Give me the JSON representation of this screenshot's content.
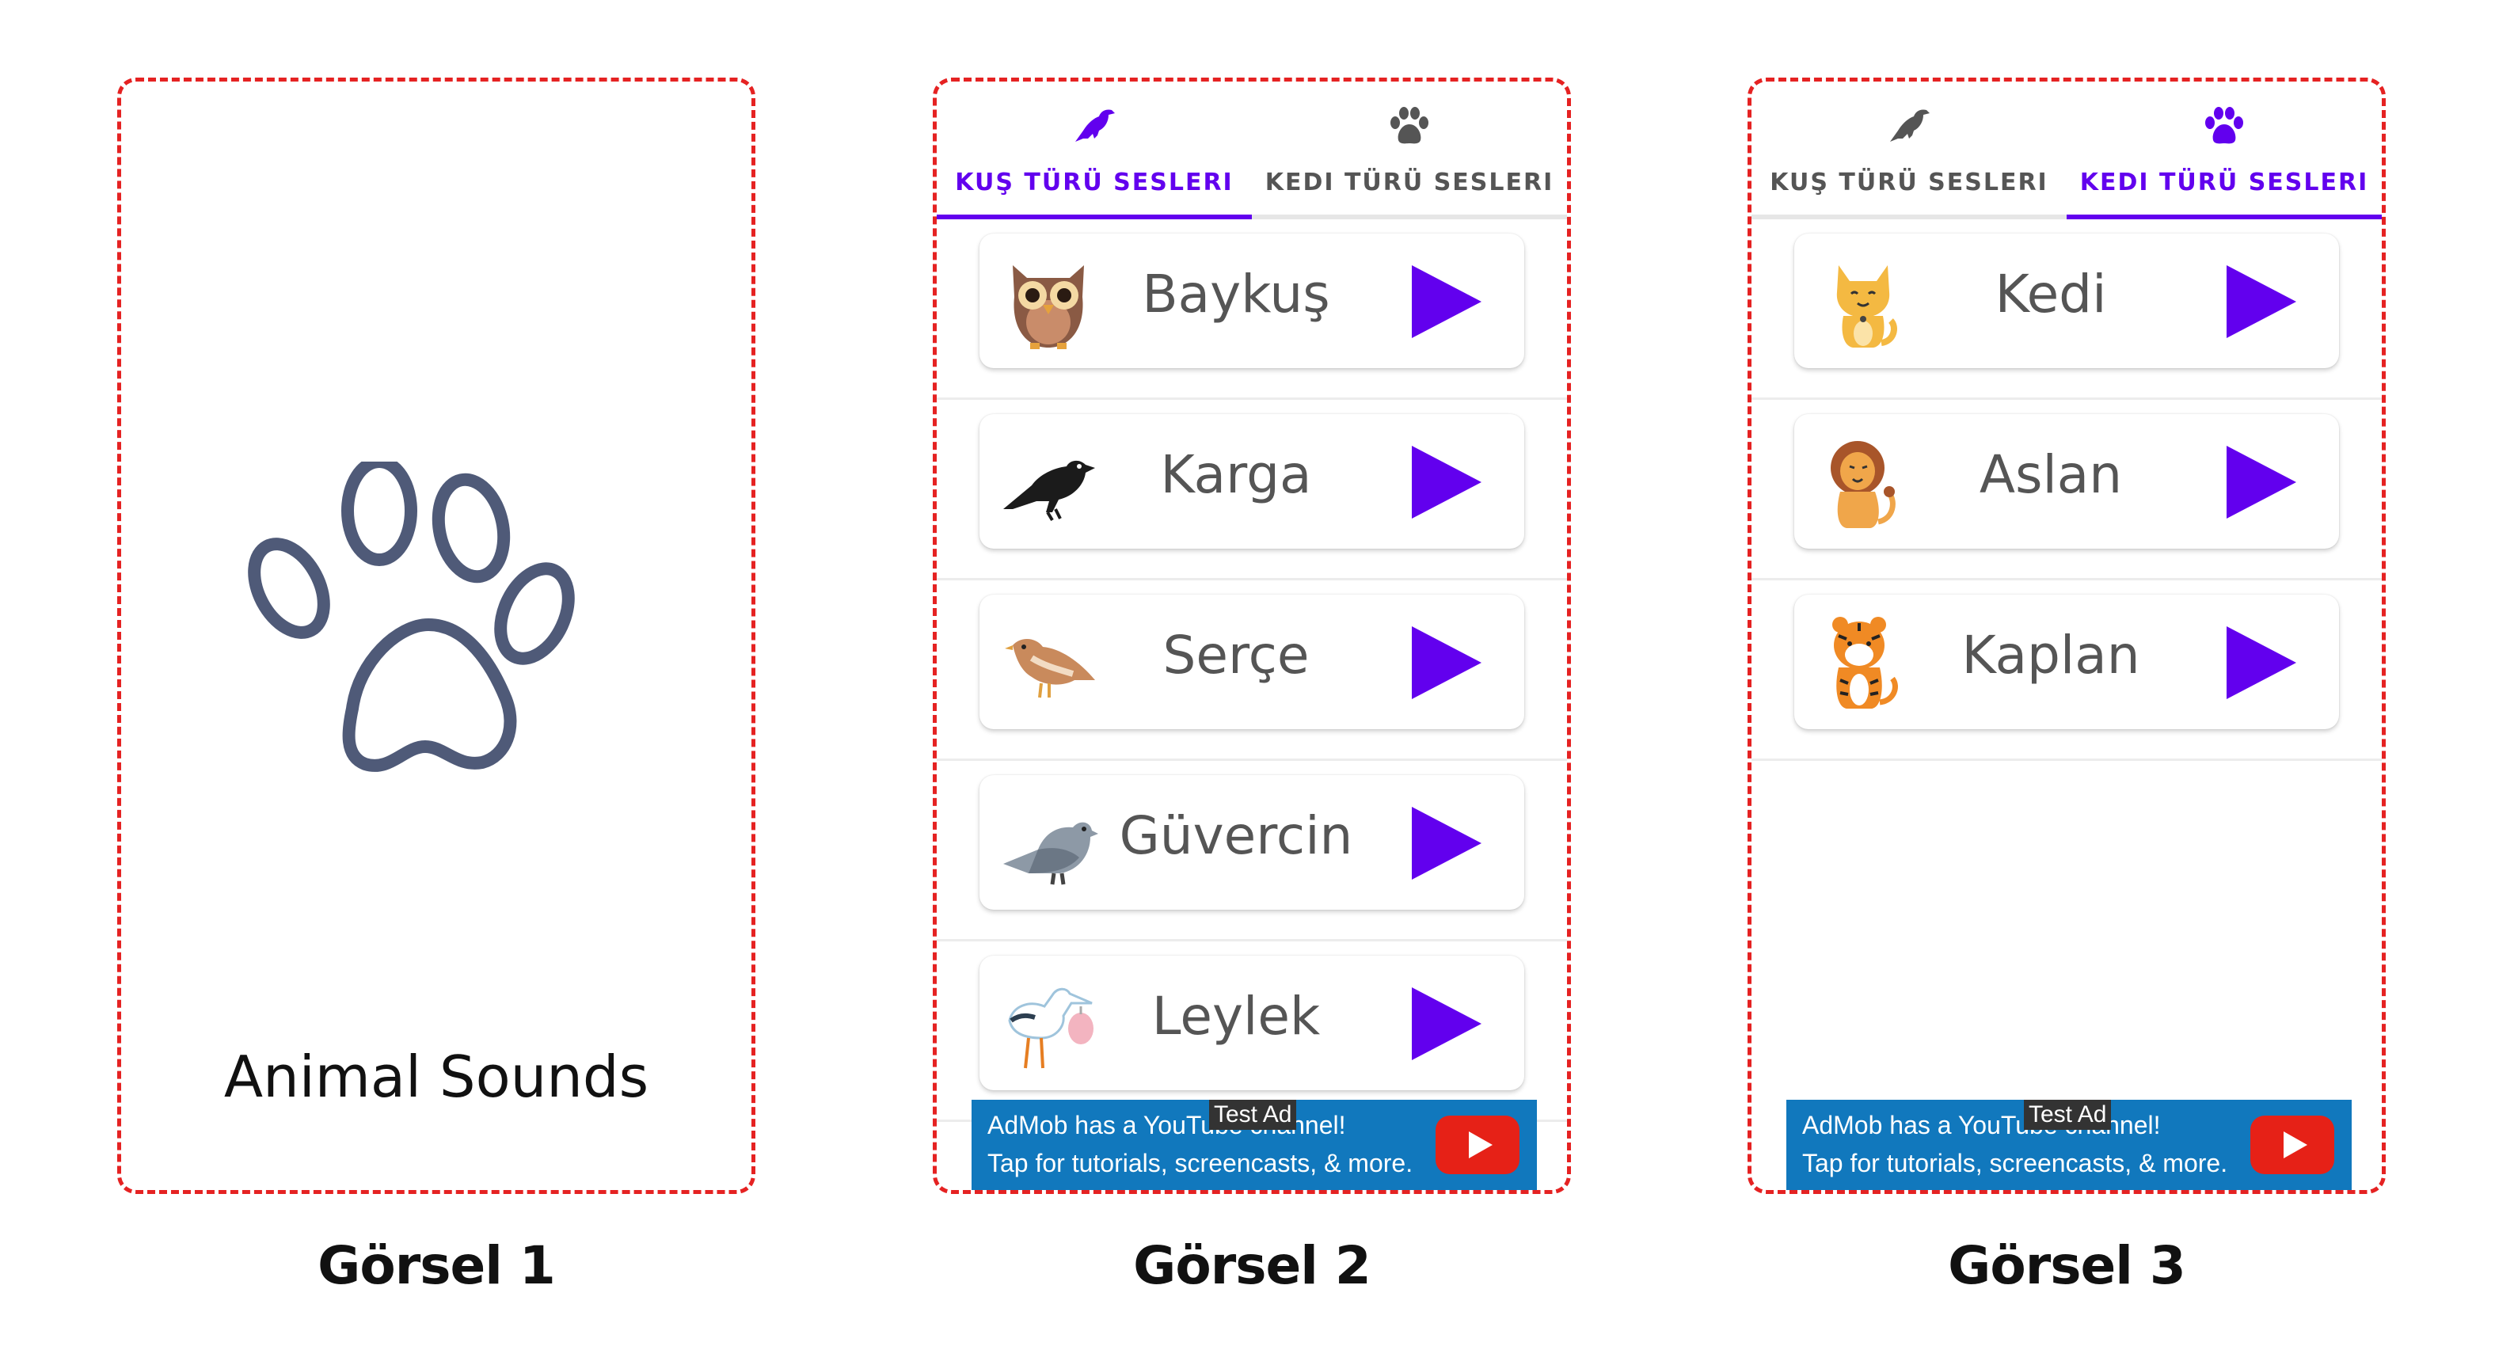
{
  "splash": {
    "icon": "paw-outline-icon",
    "title": "Animal Sounds",
    "caption": "Görsel 1"
  },
  "tabs": [
    {
      "label": "KUŞ TÜRÜ SESLERI",
      "icon": "bird-icon"
    },
    {
      "label": "KEDI TÜRÜ SESLERI",
      "icon": "paw-icon"
    }
  ],
  "birds": {
    "caption": "Görsel 2",
    "active_tab": 0,
    "items": [
      {
        "name": "Baykuş",
        "icon": "owl-icon"
      },
      {
        "name": "Karga",
        "icon": "crow-icon"
      },
      {
        "name": "Serçe",
        "icon": "sparrow-icon"
      },
      {
        "name": "Güvercin",
        "icon": "pigeon-icon"
      },
      {
        "name": "Leylek",
        "icon": "stork-icon"
      }
    ]
  },
  "cats": {
    "caption": "Görsel 3",
    "active_tab": 1,
    "items": [
      {
        "name": "Kedi",
        "icon": "cat-icon"
      },
      {
        "name": "Aslan",
        "icon": "lion-icon"
      },
      {
        "name": "Kaplan",
        "icon": "tiger-icon"
      }
    ]
  },
  "ad": {
    "line1": "AdMob has a YouTube channel!",
    "line2": "Tap for tutorials, screencasts, & more.",
    "badge": "Test Ad"
  },
  "colors": {
    "accent": "#6200ee",
    "frame": "#e52222",
    "ad_bg": "#1178bd",
    "paw_outline": "#4f5a78"
  }
}
